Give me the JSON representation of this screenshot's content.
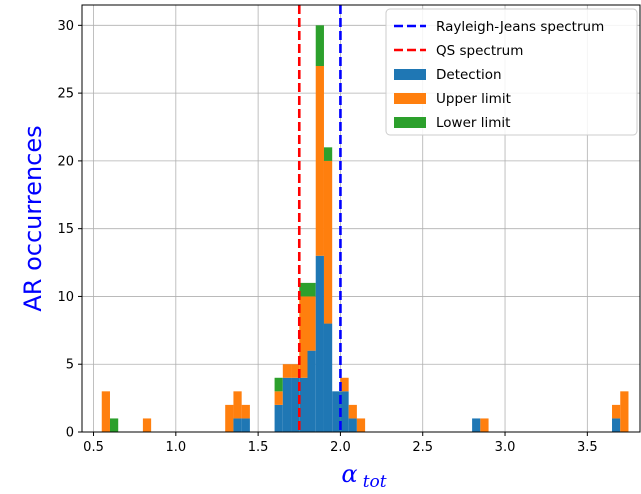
{
  "chart_data": {
    "type": "bar",
    "stacked": true,
    "bin_width": 0.05,
    "xlim": [
      0.43,
      3.82
    ],
    "ylim": [
      0,
      31.5
    ],
    "xticks": [
      0.5,
      1.0,
      1.5,
      2.0,
      2.5,
      3.0,
      3.5
    ],
    "xtick_labels": [
      "0.5",
      "1.0",
      "1.5",
      "2.0",
      "2.5",
      "3.0",
      "3.5"
    ],
    "yticks": [
      0,
      5,
      10,
      15,
      20,
      25,
      30
    ],
    "ytick_labels": [
      "0",
      "5",
      "10",
      "15",
      "20",
      "25",
      "30"
    ],
    "xlabel": "α",
    "xlabel_sub": "tot",
    "ylabel": "AR occurrences",
    "grid": true,
    "legend_position": "top-right",
    "vlines": [
      {
        "name": "Rayleigh-Jeans spectrum",
        "x": 2.0,
        "color": "#0000ff",
        "style": "dashed"
      },
      {
        "name": "QS spectrum",
        "x": 1.75,
        "color": "#ff0000",
        "style": "dashed"
      }
    ],
    "bins": [
      0.55,
      0.6,
      0.65,
      0.8,
      1.3,
      1.35,
      1.4,
      1.45,
      1.6,
      1.65,
      1.7,
      1.75,
      1.8,
      1.85,
      1.9,
      1.95,
      2.0,
      2.05,
      2.1,
      2.15,
      2.8,
      2.85,
      3.65,
      3.7
    ],
    "series": [
      {
        "name": "Detection",
        "color": "#1f77b4",
        "values": [
          0,
          0,
          0,
          0,
          0,
          1,
          1,
          0,
          2,
          4,
          4,
          4,
          6,
          13,
          8,
          3,
          3,
          1,
          0,
          0,
          1,
          0,
          1,
          0
        ]
      },
      {
        "name": "Upper limit",
        "color": "#ff7f0e",
        "values": [
          3,
          0,
          0,
          1,
          2,
          2,
          1,
          0,
          1,
          1,
          1,
          6,
          4,
          14,
          12,
          0,
          1,
          1,
          1,
          0,
          0,
          1,
          1,
          3
        ]
      },
      {
        "name": "Lower limit",
        "color": "#2ca02c",
        "values": [
          0,
          1,
          0,
          0,
          0,
          0,
          0,
          0,
          1,
          0,
          0,
          1,
          1,
          3,
          1,
          0,
          0,
          0,
          0,
          0,
          0,
          0,
          0,
          0
        ]
      }
    ]
  },
  "legend": {
    "items": [
      {
        "label": "Rayleigh-Jeans spectrum",
        "kind": "line",
        "color": "#0000ff"
      },
      {
        "label": "QS spectrum",
        "kind": "line",
        "color": "#ff0000"
      },
      {
        "label": "Detection",
        "kind": "patch",
        "color": "#1f77b4"
      },
      {
        "label": "Upper limit",
        "kind": "patch",
        "color": "#ff7f0e"
      },
      {
        "label": "Lower limit",
        "kind": "patch",
        "color": "#2ca02c"
      }
    ]
  },
  "colors": {
    "grid": "#b0b0b0",
    "axis": "#000000",
    "label": "#0000ff"
  }
}
